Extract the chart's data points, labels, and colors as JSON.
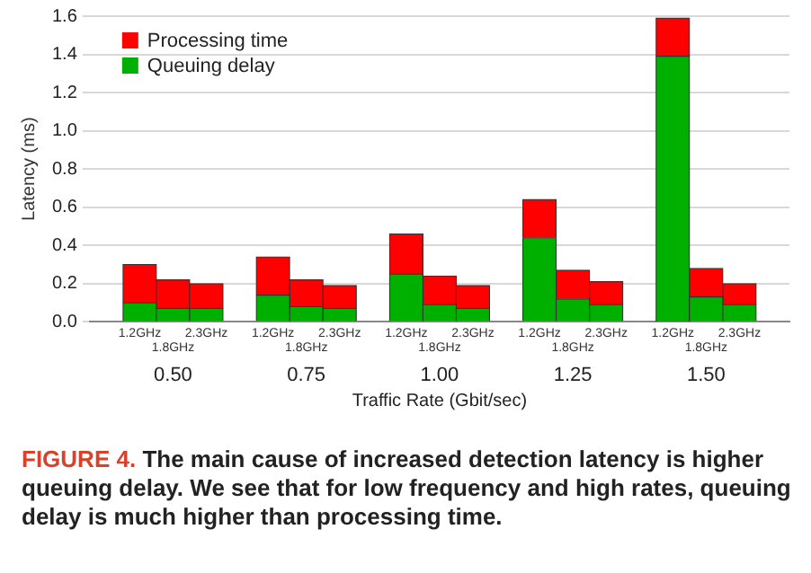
{
  "chart_data": {
    "type": "bar",
    "stacked": true,
    "ylabel": "Latency (ms)",
    "xlabel": "Traffic Rate (Gbit/sec)",
    "categories": [
      null,
      "1.2GHz",
      "1.8GHz",
      "2.3GHz",
      null,
      "1.2GHz",
      "1.8GHz",
      "2.3GHz",
      null,
      "1.2GHz",
      "1.8GHz",
      "2.3GHz",
      null,
      "1.2GHz",
      "1.8GHz",
      "2.3GHz",
      null,
      "1.2GHz",
      "1.8GHz",
      "2.3GHz",
      null
    ],
    "series": [
      {
        "name": "Queuing delay",
        "color": "#00b000",
        "values": [
          null,
          0.1,
          0.07,
          0.07,
          null,
          0.14,
          0.08,
          0.07,
          null,
          0.25,
          0.09,
          0.07,
          null,
          0.44,
          0.12,
          0.09,
          null,
          1.39,
          0.13,
          0.09,
          null
        ]
      },
      {
        "name": "Processing time",
        "color": "#ff0000",
        "values": [
          null,
          0.2,
          0.15,
          0.13,
          null,
          0.2,
          0.14,
          0.12,
          null,
          0.21,
          0.15,
          0.12,
          null,
          0.2,
          0.15,
          0.12,
          null,
          0.2,
          0.15,
          0.11,
          null
        ]
      }
    ],
    "ylim": [
      0,
      1.6
    ],
    "yticks": [
      "0.0",
      0.2,
      0.4,
      0.6,
      0.8,
      "1.0",
      1.2,
      1.4,
      1.6
    ],
    "grid": "y",
    "legend": "top left",
    "annotations": [
      "0.50",
      "0.75",
      "1.00",
      "1.25",
      "1.50",
      "FIGURE 4.",
      "The main cause of increased detection latency is higher queuing delay. We see that for low frequency and high rates, queuing delay is much higher than processing time."
    ]
  }
}
